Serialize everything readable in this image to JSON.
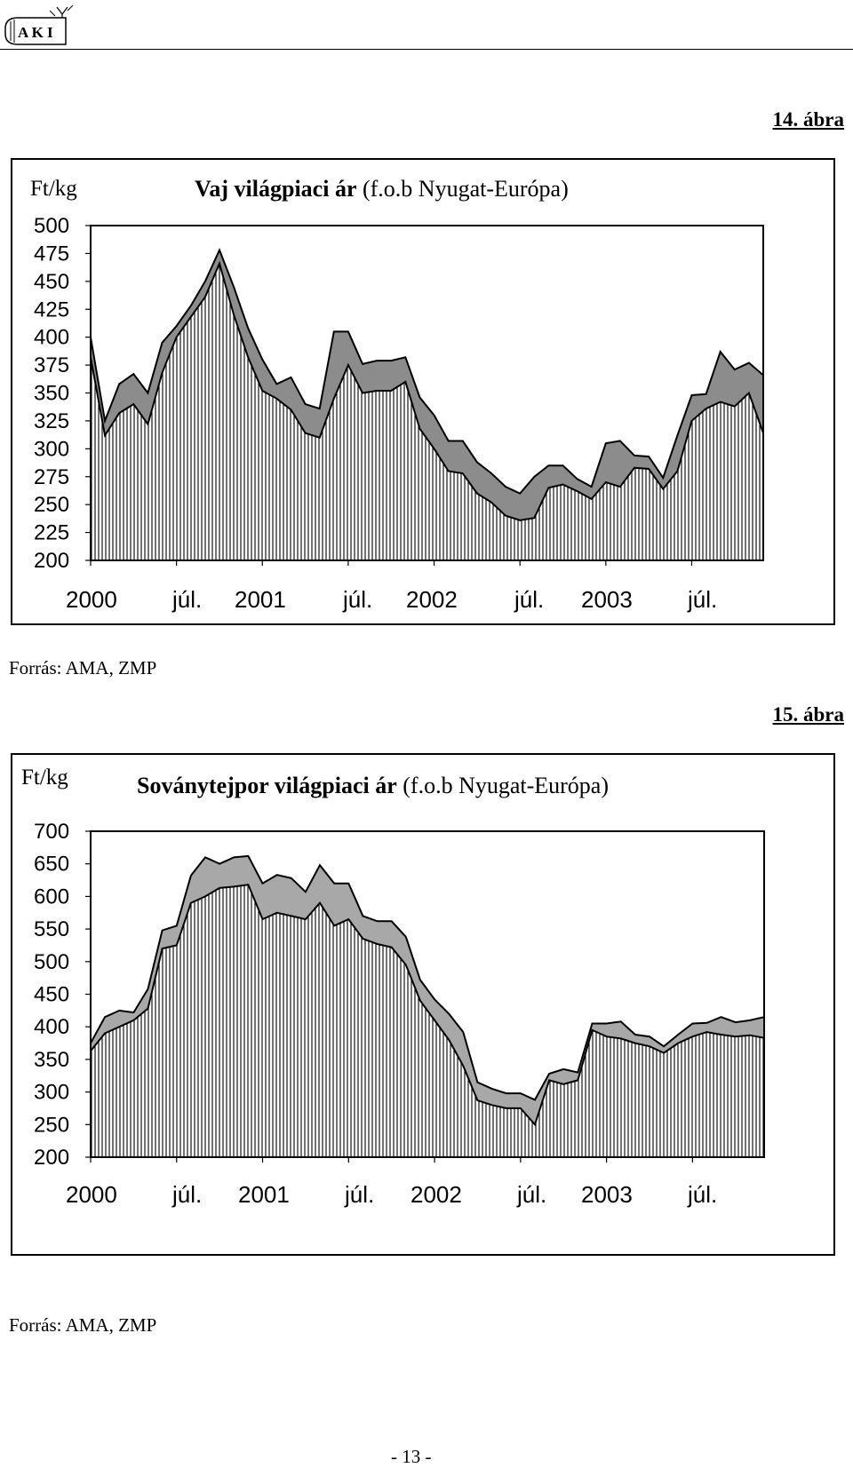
{
  "header": {
    "logo_text": "A K I"
  },
  "page_number": "- 13 -",
  "charts": [
    {
      "figure_label": "14. ábra",
      "unit": "Ft/kg",
      "title_bold": "Vaj világpiaci ár",
      "title_rest": " (f.o.b Nyugat-Európa)",
      "source": "Forrás: AMA, ZMP"
    },
    {
      "figure_label": "15. ábra",
      "unit": "Ft/kg",
      "title_bold": "Soványtejpor világpiaci ár",
      "title_rest": " (f.o.b Nyugat-Európa)",
      "source": "Forrás: AMA, ZMP"
    }
  ],
  "chart_data": [
    {
      "type": "area",
      "title": "Vaj világpiaci ár (f.o.b Nyugat-Európa)",
      "ylabel": "Ft/kg",
      "ylim": [
        200,
        500
      ],
      "yticks": [
        500,
        475,
        450,
        425,
        400,
        375,
        350,
        325,
        300,
        275,
        250,
        225,
        200
      ],
      "xtick_labels": [
        "2000",
        "júl.",
        "2001",
        "júl.",
        "2002",
        "júl.",
        "2003",
        "júl."
      ],
      "grid": false,
      "colors": {
        "lower_fill": "#ffffff",
        "lower_hatch": "#000000",
        "band": "#8c8c8c"
      },
      "series": [
        {
          "values": [
            382,
            312,
            332,
            340,
            322,
            368,
            400,
            418,
            436,
            466,
            420,
            382,
            352,
            345,
            335,
            314,
            310,
            345,
            375,
            350,
            352,
            352,
            360,
            318,
            300,
            280,
            278,
            260,
            252,
            240,
            236,
            238,
            265,
            268,
            262,
            255,
            270,
            266,
            283,
            282,
            264,
            280,
            325,
            336,
            342,
            338,
            350,
            314
          ]
        },
        {
          "values": [
            400,
            325,
            358,
            367,
            350,
            395,
            410,
            428,
            450,
            478,
            445,
            408,
            380,
            358,
            364,
            340,
            336,
            405,
            405,
            376,
            379,
            379,
            382,
            346,
            330,
            307,
            307,
            288,
            278,
            266,
            260,
            275,
            285,
            285,
            273,
            266,
            305,
            307,
            294,
            293,
            274,
            312,
            348,
            349,
            387,
            371,
            377,
            366
          ]
        }
      ]
    },
    {
      "type": "area",
      "title": "Soványtejpor világpiaci ár (f.o.b Nyugat-Európa)",
      "ylabel": "Ft/kg",
      "ylim": [
        200,
        700
      ],
      "yticks": [
        700,
        650,
        600,
        550,
        500,
        450,
        400,
        350,
        300,
        250,
        200
      ],
      "xtick_labels": [
        "2000",
        "júl.",
        "2001",
        "júl.",
        "2002",
        "júl.",
        "2003",
        "júl."
      ],
      "grid": false,
      "colors": {
        "lower_fill": "#ffffff",
        "lower_hatch": "#000000",
        "band": "#a8a8a8"
      },
      "series": [
        {
          "values": [
            363,
            390,
            400,
            410,
            428,
            520,
            525,
            590,
            600,
            613,
            615,
            618,
            565,
            575,
            570,
            565,
            590,
            555,
            565,
            535,
            527,
            522,
            495,
            440,
            410,
            380,
            340,
            287,
            280,
            275,
            275,
            250,
            318,
            312,
            318,
            395,
            385,
            382,
            375,
            370,
            360,
            375,
            385,
            392,
            388,
            385,
            387,
            383
          ]
        },
        {
          "values": [
            375,
            415,
            425,
            422,
            458,
            548,
            555,
            632,
            660,
            650,
            660,
            662,
            620,
            633,
            628,
            607,
            648,
            620,
            620,
            570,
            562,
            562,
            538,
            472,
            442,
            420,
            392,
            315,
            305,
            298,
            298,
            288,
            328,
            335,
            330,
            405,
            405,
            408,
            388,
            385,
            370,
            388,
            405,
            406,
            415,
            407,
            410,
            415
          ]
        }
      ]
    }
  ]
}
